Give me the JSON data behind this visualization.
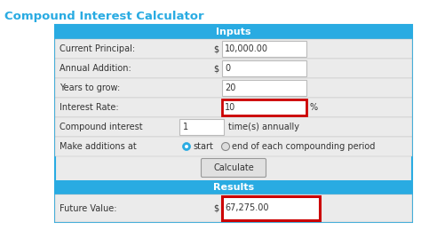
{
  "title": "Compound Interest Calculator",
  "title_color": "#29ABE2",
  "title_fontsize": 9.5,
  "bg_color": "#ebebeb",
  "outer_border_color": "#29ABE2",
  "header_bg": "#29ABE2",
  "header_text_color": "#ffffff",
  "header_fontsize": 8,
  "inputs_header": "Inputs",
  "results_header": "Results",
  "rows": [
    {
      "label": "Current Principal:",
      "dollar": true,
      "value": "10,000.00",
      "highlight": false
    },
    {
      "label": "Annual Addition:",
      "dollar": true,
      "value": "0",
      "highlight": false
    },
    {
      "label": "Years to grow:",
      "dollar": false,
      "value": "20",
      "highlight": false
    },
    {
      "label": "Interest Rate:",
      "dollar": false,
      "value": "10",
      "highlight": true,
      "suffix": "%"
    }
  ],
  "button_text": "Calculate",
  "result_label": "Future Value:",
  "result_value": "67,275.00",
  "label_color": "#333333",
  "value_bg": "#ffffff",
  "field_border": "#bbbbbb",
  "highlight_border": "#cc0000",
  "label_font": 7,
  "value_font": 7
}
